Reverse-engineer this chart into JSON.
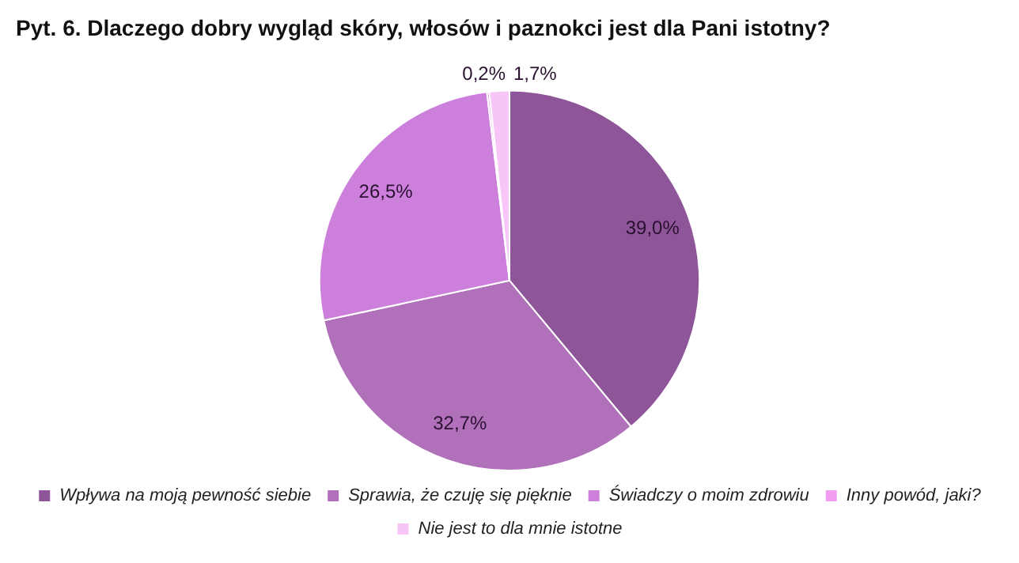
{
  "chart_data": {
    "type": "pie",
    "title": "Pyt. 6. Dlaczego dobry wygląd skóry, włosów i paznokci jest dla Pani istotny?",
    "categories": [
      "Wpływa na moją pewność siebie",
      "Sprawia, że czuję się pięknie",
      "Świadczy o moim zdrowiu",
      "Inny powód, jaki?",
      "Nie jest to dla mnie istotne"
    ],
    "values": [
      39.0,
      32.7,
      26.5,
      0.2,
      1.7
    ],
    "value_labels": [
      "39,0%",
      "32,7%",
      "26,5%",
      "0,2%",
      "1,7%"
    ],
    "colors": [
      "#8e5699",
      "#b070ba",
      "#cc80dc",
      "#f09cf0",
      "#f7c6f7"
    ],
    "legend": "bottom"
  }
}
